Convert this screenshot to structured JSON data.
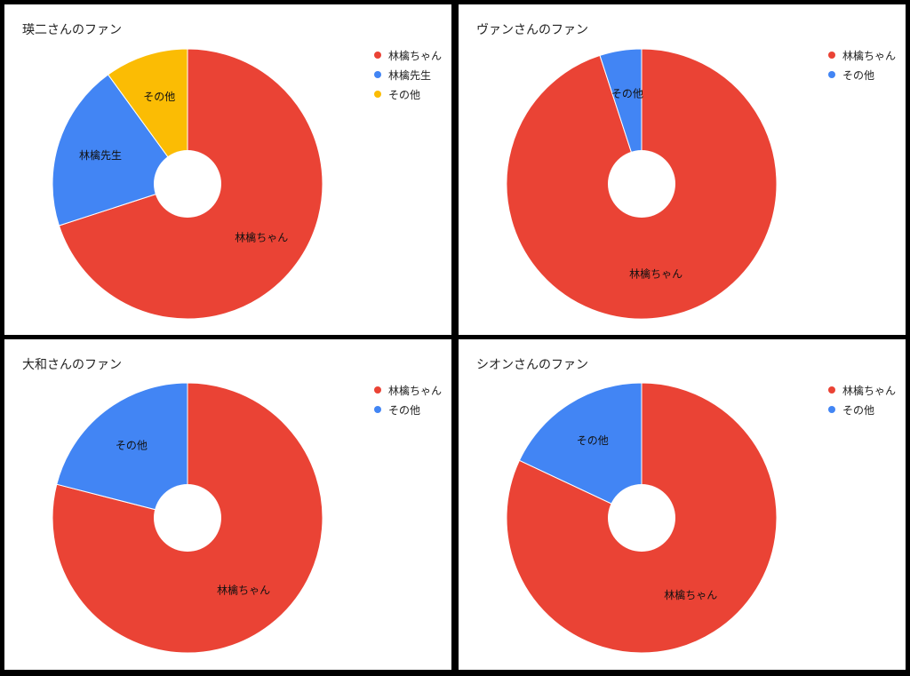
{
  "colors": {
    "red": "#EA4335",
    "blue": "#4285F4",
    "yellow": "#FBBC04",
    "hole": "#FFFFFF"
  },
  "chart_data": [
    {
      "type": "pie",
      "title": "瑛二さんのファン",
      "donut": true,
      "legend_position": "right",
      "slices": [
        {
          "label": "林檎ちゃん",
          "value": 70,
          "color": "#EA4335"
        },
        {
          "label": "林檎先生",
          "value": 20,
          "color": "#4285F4"
        },
        {
          "label": "その他",
          "value": 10,
          "color": "#FBBC04"
        }
      ]
    },
    {
      "type": "pie",
      "title": "ヴァンさんのファン",
      "donut": true,
      "legend_position": "right",
      "slices": [
        {
          "label": "林檎ちゃん",
          "value": 95,
          "color": "#EA4335"
        },
        {
          "label": "その他",
          "value": 5,
          "color": "#4285F4"
        }
      ]
    },
    {
      "type": "pie",
      "title": "大和さんのファン",
      "donut": true,
      "legend_position": "right",
      "slices": [
        {
          "label": "林檎ちゃん",
          "value": 79,
          "color": "#EA4335"
        },
        {
          "label": "その他",
          "value": 21,
          "color": "#4285F4"
        }
      ]
    },
    {
      "type": "pie",
      "title": "シオンさんのファン",
      "donut": true,
      "legend_position": "right",
      "slices": [
        {
          "label": "林檎ちゃん",
          "value": 82,
          "color": "#EA4335"
        },
        {
          "label": "その他",
          "value": 18,
          "color": "#4285F4"
        }
      ]
    }
  ]
}
